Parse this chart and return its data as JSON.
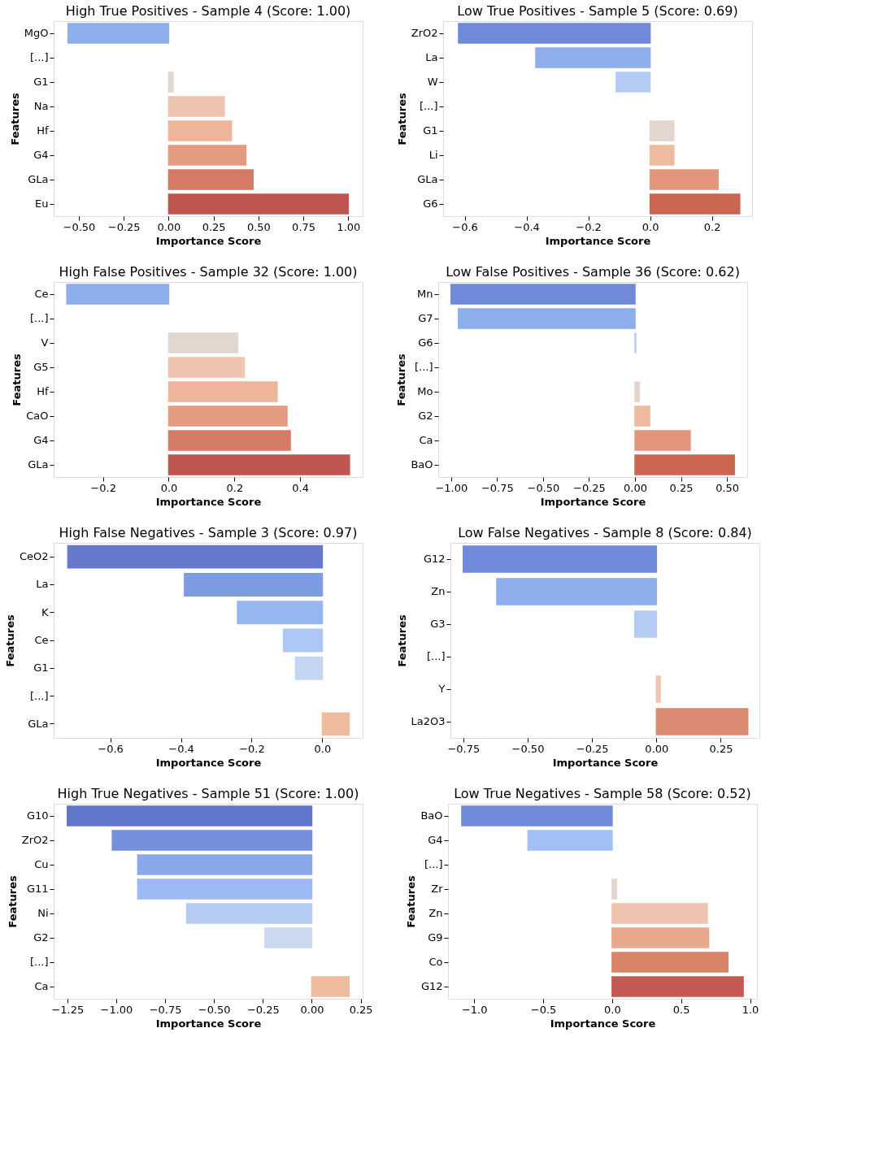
{
  "chart_data": [
    {
      "type": "bar",
      "orientation": "horizontal",
      "title": "High True Positives - Sample 4 (Score: 1.00)",
      "xlabel": "Importance Score",
      "ylabel": "Features",
      "categories": [
        "MgO",
        "[...]",
        "G1",
        "Na",
        "Hf",
        "G4",
        "GLa",
        "Eu"
      ],
      "values": [
        -0.56,
        null,
        0.025,
        0.31,
        0.35,
        0.43,
        0.47,
        1.0
      ],
      "colors": [
        "#8caeeb",
        "#ffffff",
        "#e3d6cf",
        "#eec4b0",
        "#efb59a",
        "#e59b80",
        "#d57a64",
        "#bf5650"
      ],
      "xlim": [
        -0.64,
        1.08
      ],
      "xticks": [
        {
          "value": -0.5,
          "label": "−0.50"
        },
        {
          "value": -0.25,
          "label": "−0.25"
        },
        {
          "value": 0,
          "label": "0.00"
        },
        {
          "value": 0.25,
          "label": "0.25"
        },
        {
          "value": 0.5,
          "label": "0.50"
        },
        {
          "value": 0.75,
          "label": "0.75"
        },
        {
          "value": 1.0,
          "label": "1.00"
        }
      ],
      "grid": false
    },
    {
      "type": "bar",
      "orientation": "horizontal",
      "title": "Low True Positives - Sample 5 (Score: 0.69)",
      "xlabel": "Importance Score",
      "ylabel": "Features",
      "categories": [
        "ZrO2",
        "La",
        "W",
        "[...]",
        "G1",
        "Li",
        "GLa",
        "G6"
      ],
      "values": [
        -0.62,
        -0.37,
        -0.11,
        null,
        0.077,
        0.077,
        0.22,
        0.29
      ],
      "colors": [
        "#6f8ad9",
        "#8caeeb",
        "#b5cbf3",
        "#ffffff",
        "#e3d6cf",
        "#eebb9f",
        "#e3967c",
        "#cb6651"
      ],
      "xlim": [
        -0.67,
        0.33
      ],
      "xticks": [
        {
          "value": -0.6,
          "label": "−0.6"
        },
        {
          "value": -0.4,
          "label": "−0.4"
        },
        {
          "value": -0.2,
          "label": "−0.2"
        },
        {
          "value": 0,
          "label": "0.0"
        },
        {
          "value": 0.2,
          "label": "0.2"
        }
      ],
      "grid": false
    },
    {
      "type": "bar",
      "orientation": "horizontal",
      "title": "High False Positives - Sample 32 (Score: 1.00)",
      "xlabel": "Importance Score",
      "ylabel": "Features",
      "categories": [
        "Ce",
        "[...]",
        "V",
        "G5",
        "Hf",
        "CaO",
        "G4",
        "GLa"
      ],
      "values": [
        -0.31,
        null,
        0.21,
        0.23,
        0.33,
        0.36,
        0.37,
        0.55
      ],
      "colors": [
        "#8caeeb",
        "#ffffff",
        "#e3d6cf",
        "#eec4b0",
        "#efb59a",
        "#e59b80",
        "#d57a64",
        "#bf5650"
      ],
      "xlim": [
        -0.35,
        0.59
      ],
      "xticks": [
        {
          "value": -0.2,
          "label": "−0.2"
        },
        {
          "value": 0,
          "label": "0.0"
        },
        {
          "value": 0.2,
          "label": "0.2"
        },
        {
          "value": 0.4,
          "label": "0.4"
        }
      ],
      "grid": false
    },
    {
      "type": "bar",
      "orientation": "horizontal",
      "title": "Low False Positives - Sample 36 (Score: 0.62)",
      "xlabel": "Importance Score",
      "ylabel": "Features",
      "categories": [
        "Mn",
        "G7",
        "G6",
        "[...]",
        "Mo",
        "G2",
        "Ca",
        "BaO"
      ],
      "values": [
        -1.0,
        -0.96,
        0.004,
        null,
        0.024,
        0.08,
        0.3,
        0.54
      ],
      "colors": [
        "#6f8ad9",
        "#8caeeb",
        "#b5cbf3",
        "#ffffff",
        "#e3d6cf",
        "#eebb9f",
        "#e3967c",
        "#cb6651"
      ],
      "xlim": [
        -1.07,
        0.61
      ],
      "xticks": [
        {
          "value": -1.0,
          "label": "−1.00"
        },
        {
          "value": -0.75,
          "label": "−0.75"
        },
        {
          "value": -0.5,
          "label": "−0.50"
        },
        {
          "value": -0.25,
          "label": "−0.25"
        },
        {
          "value": 0,
          "label": "0.00"
        },
        {
          "value": 0.25,
          "label": "0.25"
        },
        {
          "value": 0.5,
          "label": "0.50"
        }
      ],
      "grid": false
    },
    {
      "type": "bar",
      "orientation": "horizontal",
      "title": "High False Negatives - Sample 3 (Score: 0.97)",
      "xlabel": "Importance Score",
      "ylabel": "Features",
      "categories": [
        "CeO2",
        "La",
        "K",
        "Ce",
        "G1",
        "[...]",
        "GLa"
      ],
      "values": [
        -0.72,
        -0.39,
        -0.24,
        -0.11,
        -0.076,
        null,
        0.076
      ],
      "colors": [
        "#6578cc",
        "#7d9be3",
        "#96b6f0",
        "#adc8f5",
        "#c5d6f2",
        "#ffffff",
        "#eebb9f"
      ],
      "xlim": [
        -0.76,
        0.114
      ],
      "xticks": [
        {
          "value": -0.6,
          "label": "−0.6"
        },
        {
          "value": -0.4,
          "label": "−0.4"
        },
        {
          "value": -0.2,
          "label": "−0.2"
        },
        {
          "value": 0,
          "label": "0.0"
        }
      ],
      "grid": false
    },
    {
      "type": "bar",
      "orientation": "horizontal",
      "title": "Low False Negatives - Sample 8 (Score: 0.84)",
      "xlabel": "Importance Score",
      "ylabel": "Features",
      "categories": [
        "G12",
        "Zn",
        "G3",
        "[...]",
        "Y",
        "La2O3"
      ],
      "values": [
        -0.75,
        -0.62,
        -0.084,
        null,
        0.015,
        0.355
      ],
      "colors": [
        "#6f8ad9",
        "#8caeeb",
        "#b5cbf3",
        "#ffffff",
        "#f0c6b2",
        "#db8a72"
      ],
      "xlim": [
        -0.8,
        0.4
      ],
      "xticks": [
        {
          "value": -0.75,
          "label": "−0.75"
        },
        {
          "value": -0.5,
          "label": "−0.50"
        },
        {
          "value": -0.25,
          "label": "−0.25"
        },
        {
          "value": 0,
          "label": "0.00"
        },
        {
          "value": 0.25,
          "label": "0.25"
        }
      ],
      "grid": false
    },
    {
      "type": "bar",
      "orientation": "horizontal",
      "title": "High True Negatives - Sample 51 (Score: 1.00)",
      "xlabel": "Importance Score",
      "ylabel": "Features",
      "categories": [
        "G10",
        "ZrO2",
        "Cu",
        "G11",
        "Ni",
        "G2",
        "[...]",
        "Ca"
      ],
      "values": [
        -1.25,
        -1.02,
        -0.89,
        -0.89,
        -0.64,
        -0.24,
        null,
        0.19
      ],
      "colors": [
        "#6276cb",
        "#7490dc",
        "#88a8e9",
        "#9db9f1",
        "#b5cbf3",
        "#cad8f0",
        "#ffffff",
        "#eebb9f"
      ],
      "xlim": [
        -1.32,
        0.26
      ],
      "xticks": [
        {
          "value": -1.25,
          "label": "−1.25"
        },
        {
          "value": -1.0,
          "label": "−1.00"
        },
        {
          "value": -0.75,
          "label": "−0.75"
        },
        {
          "value": -0.5,
          "label": "−0.50"
        },
        {
          "value": -0.25,
          "label": "−0.25"
        },
        {
          "value": 0,
          "label": "0.00"
        },
        {
          "value": 0.25,
          "label": "0.25"
        }
      ],
      "grid": false
    },
    {
      "type": "bar",
      "orientation": "horizontal",
      "title": "Low True Negatives - Sample 58 (Score: 0.52)",
      "xlabel": "Importance Score",
      "ylabel": "Features",
      "categories": [
        "BaO",
        "G4",
        "[...]",
        "Zr",
        "Zn",
        "G9",
        "Co",
        "G12"
      ],
      "values": [
        -1.09,
        -0.61,
        null,
        0.032,
        0.69,
        0.7,
        0.84,
        0.95
      ],
      "colors": [
        "#6f8ad9",
        "#a3c0f5",
        "#ffffff",
        "#e3d6cf",
        "#eec4b0",
        "#e8a88c",
        "#d98469",
        "#c45852"
      ],
      "xlim": [
        -1.19,
        1.05
      ],
      "xticks": [
        {
          "value": -1.0,
          "label": "−1.0"
        },
        {
          "value": -0.5,
          "label": "−0.5"
        },
        {
          "value": 0,
          "label": "0.0"
        },
        {
          "value": 0.5,
          "label": "0.5"
        },
        {
          "value": 1.0,
          "label": "1.0"
        }
      ],
      "grid": false
    }
  ]
}
